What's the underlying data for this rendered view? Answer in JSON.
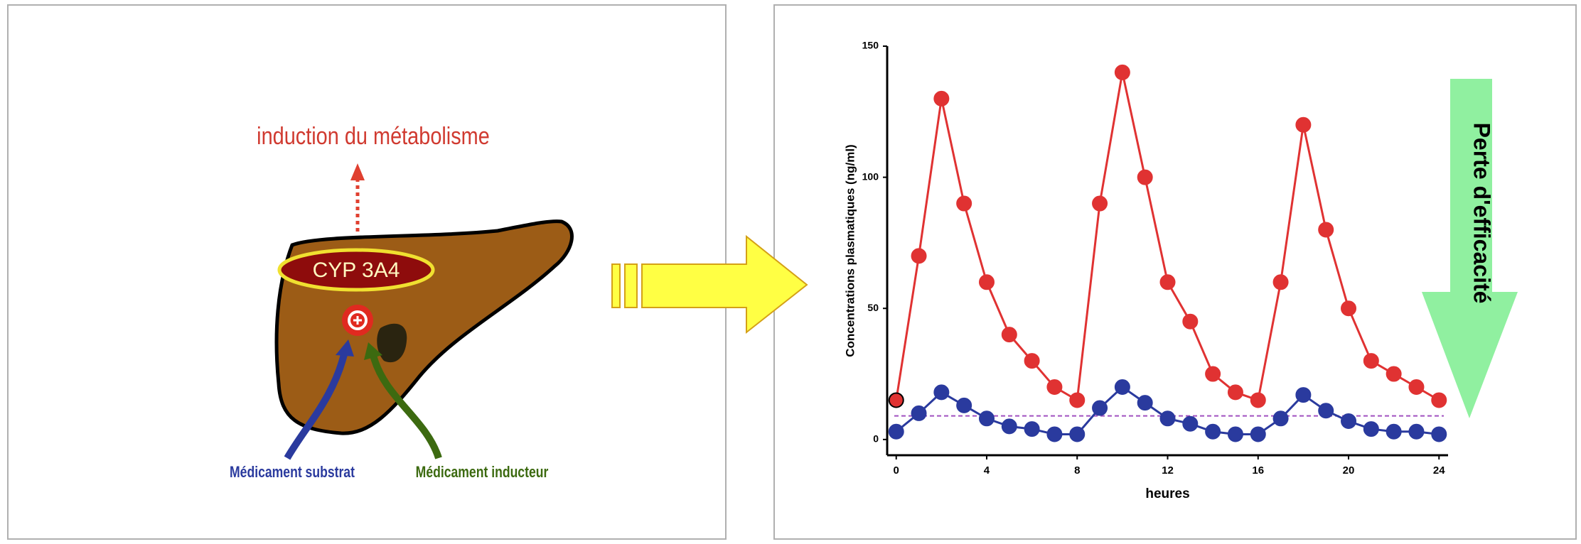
{
  "diagram": {
    "induction_label": "induction du métabolisme",
    "enzyme_label": "CYP 3A4",
    "substrate_label": "Médicament substrat",
    "inducer_label": "Médicament inducteur"
  },
  "chart_data": {
    "type": "line",
    "x_label": "heures",
    "y_label": "Concentrations plasmatiques (ng/ml)",
    "annotation": "Perte d'efficacité",
    "x": [
      0,
      1,
      2,
      3,
      4,
      5,
      6,
      7,
      8,
      9,
      10,
      11,
      12,
      13,
      14,
      15,
      16,
      17,
      18,
      19,
      20,
      21,
      22,
      23,
      24
    ],
    "series": [
      {
        "color": "#e03232",
        "values": [
          15,
          70,
          130,
          90,
          60,
          40,
          30,
          20,
          15,
          90,
          140,
          100,
          60,
          45,
          25,
          18,
          15,
          60,
          120,
          80,
          50,
          30,
          25,
          20,
          15
        ]
      },
      {
        "color": "#2a3a9e",
        "values": [
          3,
          10,
          18,
          13,
          8,
          5,
          4,
          2,
          2,
          12,
          20,
          14,
          8,
          6,
          3,
          2,
          2,
          8,
          17,
          11,
          7,
          4,
          3,
          3,
          2
        ]
      }
    ],
    "threshold": 9,
    "threshold_color": "#a050c0",
    "xlim": [
      -0.4,
      24.4
    ],
    "ylim": [
      -6,
      150
    ],
    "xticks": [
      0,
      4,
      8,
      12,
      16,
      20,
      24
    ],
    "yticks": [
      0,
      50,
      100,
      150
    ]
  }
}
